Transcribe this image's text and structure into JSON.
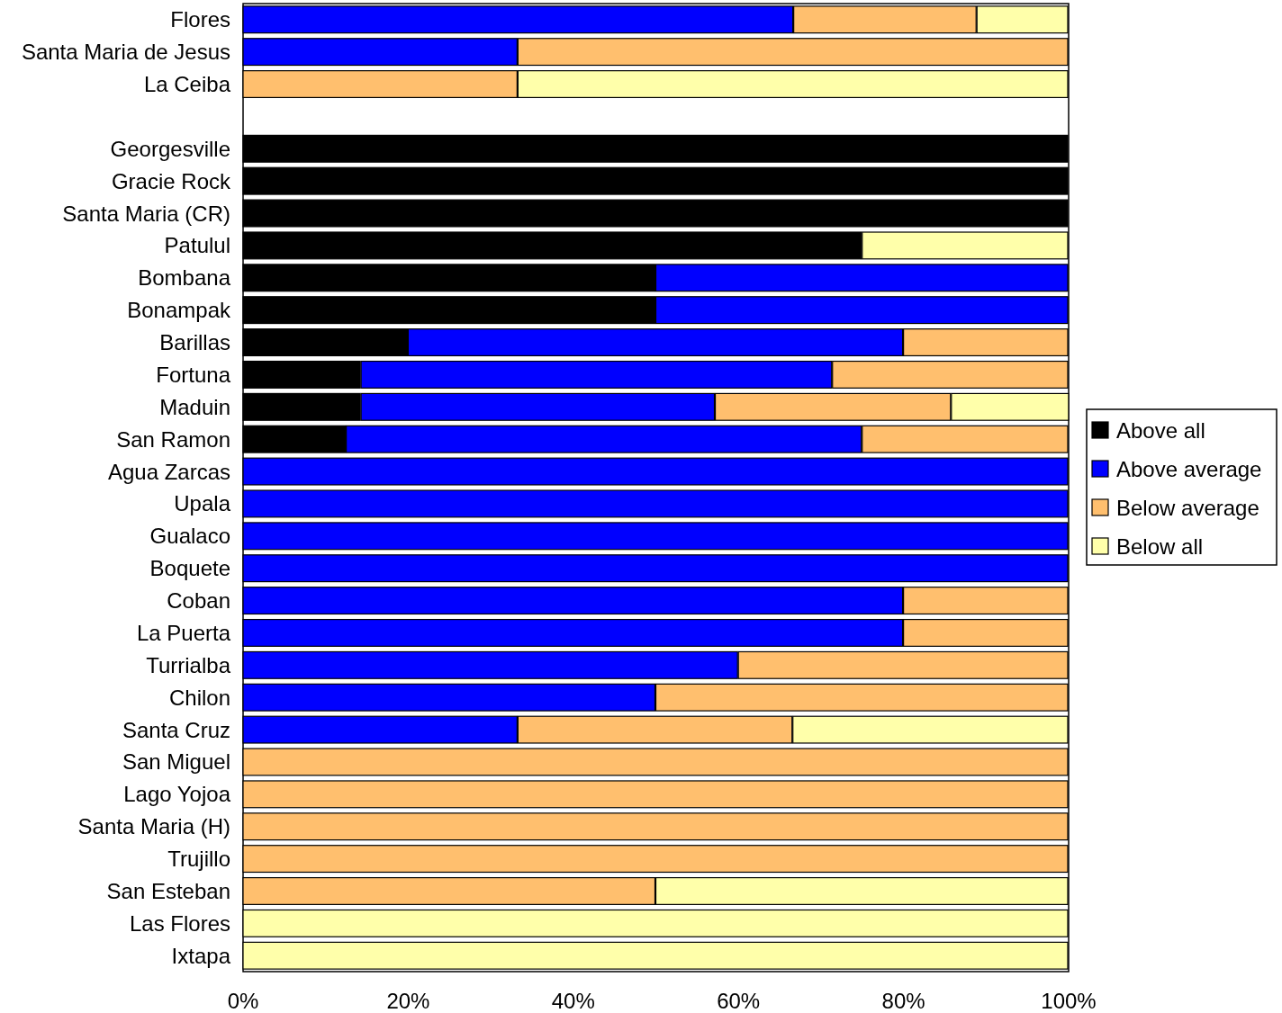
{
  "chart_data": {
    "type": "bar",
    "orientation": "horizontal",
    "stacked": true,
    "categories": [
      "Flores",
      "Santa Maria de Jesus",
      "La Ceiba",
      null,
      "Georgesville",
      "Gracie Rock",
      "Santa Maria (CR)",
      "Patulul",
      "Bombana",
      "Bonampak",
      "Barillas",
      "Fortuna",
      "Maduin",
      "San Ramon",
      "Agua Zarcas",
      "Upala",
      "Gualaco",
      "Boquete",
      "Coban",
      "La Puerta",
      "Turrialba",
      "Chilon",
      "Santa Cruz",
      "San Miguel",
      "Lago Yojoa",
      "Santa Maria (H)",
      "Trujillo",
      "San Esteban",
      "Las Flores",
      "Ixtapa"
    ],
    "series": [
      {
        "name": "Above all",
        "color": "#000000",
        "values": [
          0,
          0,
          0,
          null,
          100,
          100,
          100,
          75,
          50,
          50,
          20,
          14.3,
          14.3,
          12.5,
          0,
          0,
          0,
          0,
          0,
          0,
          0,
          0,
          0,
          0,
          0,
          0,
          0,
          0,
          0,
          0
        ]
      },
      {
        "name": "Above average",
        "color": "#0000ff",
        "values": [
          66.7,
          33.3,
          0,
          null,
          0,
          0,
          0,
          0,
          50,
          50,
          60,
          57.1,
          42.9,
          62.5,
          100,
          100,
          100,
          100,
          80,
          80,
          60,
          50,
          33.3,
          0,
          0,
          0,
          0,
          0,
          0,
          0
        ]
      },
      {
        "name": "Below average",
        "color": "#ffbf6e",
        "values": [
          22.2,
          66.7,
          33.3,
          null,
          0,
          0,
          0,
          0,
          0,
          0,
          20,
          28.6,
          28.6,
          25,
          0,
          0,
          0,
          0,
          20,
          20,
          40,
          50,
          33.3,
          100,
          100,
          100,
          100,
          50,
          0,
          0
        ]
      },
      {
        "name": "Below all",
        "color": "#ffffaa",
        "values": [
          11.1,
          0,
          66.7,
          null,
          0,
          0,
          0,
          25,
          0,
          0,
          0,
          0,
          14.3,
          0,
          0,
          0,
          0,
          0,
          0,
          0,
          0,
          0,
          33.4,
          0,
          0,
          0,
          0,
          50,
          100,
          100
        ]
      }
    ],
    "xlim": [
      0,
      100
    ],
    "xticks": [
      {
        "value": 0,
        "label": "0%"
      },
      {
        "value": 20,
        "label": "20%"
      },
      {
        "value": 40,
        "label": "40%"
      },
      {
        "value": 60,
        "label": "60%"
      },
      {
        "value": 80,
        "label": "80%"
      },
      {
        "value": 100,
        "label": "100%"
      }
    ],
    "grid": false,
    "legend": "right"
  }
}
